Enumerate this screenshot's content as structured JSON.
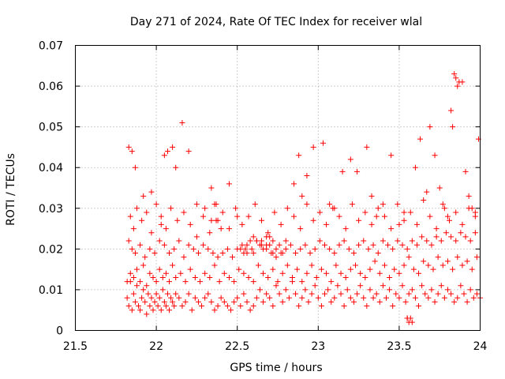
{
  "chart_data": {
    "type": "scatter",
    "title": "Day 271 of 2024, Rate Of TEC Index for receiver wlal",
    "xlabel": "GPS time / hours",
    "ylabel": "ROTI / TECUs",
    "xlim": [
      21.5,
      24
    ],
    "ylim": [
      0,
      0.07
    ],
    "xticks": [
      21.5,
      22,
      22.5,
      23,
      23.5,
      24
    ],
    "xtick_labels": [
      "21.5",
      "22",
      "22.5",
      "23",
      "23.5",
      "24"
    ],
    "yticks": [
      0,
      0.01,
      0.02,
      0.03,
      0.04,
      0.05,
      0.06,
      0.07
    ],
    "ytick_labels": [
      "0",
      "0.01",
      "0.02",
      "0.03",
      "0.04",
      "0.05",
      "0.06",
      "0.07"
    ],
    "grid": true,
    "marker": "plus",
    "color": "#ff0000",
    "series": [
      {
        "name": "ROTI",
        "x": [
          21.82,
          21.83,
          21.84,
          21.85,
          21.86,
          21.87,
          21.88,
          21.89,
          21.9,
          21.91,
          21.92,
          21.93,
          21.94,
          21.95,
          21.96,
          21.97,
          21.98,
          21.99,
          22.0,
          22.01,
          22.02,
          22.03,
          22.04,
          22.05,
          22.06,
          22.07,
          22.08,
          22.09,
          22.1,
          22.11,
          22.12,
          22.14,
          22.16,
          22.18,
          22.2,
          22.22,
          22.24,
          22.26,
          22.28,
          22.3,
          22.32,
          22.34,
          22.36,
          22.38,
          22.4,
          22.42,
          22.44,
          22.46,
          22.48,
          22.5,
          22.52,
          22.54,
          22.56,
          22.58,
          22.6,
          22.62,
          22.64,
          22.66,
          22.68,
          22.7,
          22.72,
          22.74,
          22.76,
          22.78,
          22.8,
          22.82,
          22.84,
          22.86,
          22.88,
          22.9,
          22.92,
          22.94,
          22.96,
          22.98,
          23.0,
          23.02,
          23.04,
          23.06,
          23.08,
          23.1,
          23.12,
          23.14,
          23.16,
          23.18,
          23.2,
          23.22,
          23.24,
          23.26,
          23.28,
          23.3,
          23.32,
          23.34,
          23.36,
          23.38,
          23.4,
          23.42,
          23.44,
          23.46,
          23.48,
          23.5,
          23.52,
          23.54,
          23.56,
          23.58,
          23.6,
          23.62,
          23.64,
          23.66,
          23.68,
          23.7,
          23.72,
          23.74,
          23.76,
          23.78,
          23.8,
          23.82,
          23.84,
          23.86,
          23.88,
          23.9,
          23.92,
          23.94,
          23.96,
          23.98,
          24.0,
          21.82,
          21.84,
          21.86,
          21.88,
          21.9,
          21.92,
          21.94,
          21.96,
          21.98,
          22.0,
          22.02,
          22.04,
          22.06,
          22.08,
          22.1,
          22.12,
          22.15,
          22.18,
          22.21,
          22.24,
          22.27,
          22.3,
          22.33,
          22.36,
          22.39,
          22.42,
          22.45,
          22.48,
          22.51,
          22.54,
          22.57,
          22.6,
          22.63,
          22.66,
          22.69,
          22.72,
          22.75,
          22.78,
          22.81,
          22.84,
          22.87,
          22.9,
          22.93,
          22.96,
          22.99,
          23.02,
          23.05,
          23.08,
          23.11,
          23.14,
          23.17,
          23.2,
          23.23,
          23.26,
          23.29,
          23.32,
          23.35,
          23.38,
          23.41,
          23.44,
          23.47,
          23.5,
          23.53,
          23.56,
          23.59,
          23.62,
          23.65,
          23.68,
          23.71,
          23.74,
          23.77,
          23.8,
          23.83,
          23.86,
          23.89,
          23.92,
          23.95,
          23.98,
          21.83,
          21.85,
          21.87,
          21.9,
          21.93,
          21.96,
          21.99,
          22.02,
          22.05,
          22.08,
          22.11,
          22.14,
          22.17,
          22.2,
          22.23,
          22.26,
          22.29,
          22.32,
          22.35,
          22.38,
          22.41,
          22.44,
          22.47,
          22.5,
          22.53,
          22.56,
          22.59,
          22.62,
          22.65,
          22.68,
          22.71,
          22.74,
          22.77,
          22.8,
          22.83,
          22.86,
          22.89,
          22.92,
          22.95,
          22.98,
          23.01,
          23.04,
          23.07,
          23.1,
          23.13,
          23.16,
          23.19,
          23.22,
          23.25,
          23.28,
          23.31,
          23.34,
          23.37,
          23.4,
          23.43,
          23.46,
          23.49,
          23.52,
          23.55,
          23.58,
          23.61,
          23.64,
          23.67,
          23.7,
          23.73,
          23.76,
          23.79,
          23.82,
          23.85,
          23.88,
          23.91,
          23.94,
          23.97,
          21.83,
          21.85,
          21.87,
          21.92,
          21.97,
          22.03,
          22.05,
          22.07,
          22.1,
          22.12,
          22.16,
          22.2,
          22.25,
          22.3,
          22.34,
          22.37,
          22.45,
          22.5,
          22.55,
          22.6,
          22.65,
          22.68,
          22.7,
          22.72,
          22.8,
          22.85,
          22.88,
          22.9,
          22.93,
          22.97,
          23.03,
          23.07,
          23.1,
          23.15,
          23.2,
          23.24,
          23.3,
          23.33,
          23.36,
          23.4,
          23.45,
          23.5,
          23.53,
          23.55,
          23.6,
          23.63,
          23.67,
          23.69,
          23.72,
          23.75,
          23.78,
          23.8,
          23.82,
          23.83,
          23.84,
          23.85,
          23.86,
          23.87,
          23.89,
          23.91,
          23.93,
          23.95,
          23.97,
          23.99,
          21.84,
          21.86,
          21.88,
          21.91,
          21.94,
          21.97,
          22.0,
          22.03,
          22.06,
          22.09,
          22.13,
          22.17,
          22.21,
          22.25,
          22.29,
          22.33,
          22.37,
          22.41,
          22.45,
          22.49,
          22.53,
          22.57,
          22.61,
          22.65,
          22.69,
          22.73,
          22.77,
          22.81,
          22.85,
          22.89,
          22.93,
          22.97,
          23.01,
          23.05,
          23.09,
          23.13,
          23.17,
          23.21,
          23.25,
          23.29,
          23.33,
          23.37,
          23.41,
          23.45,
          23.49,
          23.53,
          23.57,
          23.61,
          23.65,
          23.69,
          23.73,
          23.77,
          23.81,
          23.85,
          23.89,
          23.93,
          23.97,
          23.55,
          23.56,
          23.57,
          23.58,
          22.34,
          22.36,
          22.38,
          22.4,
          22.52,
          22.54,
          22.56,
          22.58,
          22.6,
          22.62,
          22.64,
          22.66,
          22.68,
          22.7,
          22.72,
          22.74,
          22.76,
          22.78
        ],
        "y": [
          0.008,
          0.006,
          0.012,
          0.005,
          0.009,
          0.007,
          0.011,
          0.006,
          0.005,
          0.008,
          0.01,
          0.007,
          0.004,
          0.009,
          0.006,
          0.008,
          0.005,
          0.007,
          0.009,
          0.006,
          0.008,
          0.005,
          0.01,
          0.007,
          0.006,
          0.009,
          0.005,
          0.008,
          0.007,
          0.006,
          0.009,
          0.008,
          0.006,
          0.007,
          0.009,
          0.005,
          0.008,
          0.007,
          0.006,
          0.008,
          0.009,
          0.007,
          0.005,
          0.006,
          0.008,
          0.007,
          0.006,
          0.005,
          0.007,
          0.008,
          0.006,
          0.009,
          0.007,
          0.005,
          0.006,
          0.008,
          0.01,
          0.007,
          0.009,
          0.008,
          0.006,
          0.011,
          0.009,
          0.007,
          0.01,
          0.008,
          0.012,
          0.009,
          0.006,
          0.008,
          0.01,
          0.007,
          0.009,
          0.011,
          0.008,
          0.006,
          0.009,
          0.01,
          0.007,
          0.008,
          0.011,
          0.009,
          0.006,
          0.01,
          0.008,
          0.007,
          0.009,
          0.011,
          0.008,
          0.006,
          0.01,
          0.008,
          0.009,
          0.007,
          0.011,
          0.008,
          0.01,
          0.006,
          0.009,
          0.008,
          0.011,
          0.007,
          0.009,
          0.01,
          0.008,
          0.006,
          0.011,
          0.009,
          0.008,
          0.01,
          0.007,
          0.009,
          0.011,
          0.008,
          0.01,
          0.009,
          0.007,
          0.008,
          0.011,
          0.009,
          0.007,
          0.01,
          0.008,
          0.009,
          0.008,
          0.012,
          0.014,
          0.013,
          0.015,
          0.012,
          0.016,
          0.011,
          0.014,
          0.013,
          0.012,
          0.015,
          0.013,
          0.014,
          0.012,
          0.016,
          0.013,
          0.014,
          0.012,
          0.015,
          0.013,
          0.012,
          0.014,
          0.013,
          0.016,
          0.012,
          0.014,
          0.013,
          0.012,
          0.015,
          0.014,
          0.013,
          0.012,
          0.016,
          0.014,
          0.013,
          0.015,
          0.012,
          0.014,
          0.016,
          0.013,
          0.015,
          0.012,
          0.014,
          0.016,
          0.013,
          0.015,
          0.014,
          0.012,
          0.016,
          0.014,
          0.013,
          0.015,
          0.016,
          0.014,
          0.013,
          0.015,
          0.017,
          0.014,
          0.016,
          0.013,
          0.015,
          0.014,
          0.016,
          0.018,
          0.015,
          0.014,
          0.017,
          0.016,
          0.015,
          0.018,
          0.016,
          0.017,
          0.015,
          0.018,
          0.016,
          0.017,
          0.015,
          0.018,
          0.022,
          0.02,
          0.019,
          0.021,
          0.018,
          0.02,
          0.019,
          0.022,
          0.021,
          0.019,
          0.02,
          0.022,
          0.018,
          0.021,
          0.02,
          0.019,
          0.021,
          0.02,
          0.019,
          0.018,
          0.019,
          0.02,
          0.018,
          0.02,
          0.021,
          0.019,
          0.02,
          0.022,
          0.021,
          0.02,
          0.019,
          0.018,
          0.019,
          0.02,
          0.021,
          0.019,
          0.02,
          0.021,
          0.019,
          0.02,
          0.022,
          0.021,
          0.02,
          0.019,
          0.021,
          0.022,
          0.02,
          0.019,
          0.021,
          0.022,
          0.02,
          0.021,
          0.019,
          0.022,
          0.021,
          0.02,
          0.022,
          0.021,
          0.02,
          0.022,
          0.021,
          0.023,
          0.022,
          0.021,
          0.023,
          0.022,
          0.024,
          0.023,
          0.022,
          0.024,
          0.023,
          0.022,
          0.024,
          0.045,
          0.044,
          0.04,
          0.033,
          0.034,
          0.026,
          0.043,
          0.044,
          0.045,
          0.04,
          0.051,
          0.044,
          0.023,
          0.03,
          0.027,
          0.031,
          0.036,
          0.028,
          0.02,
          0.019,
          0.022,
          0.023,
          0.021,
          0.019,
          0.022,
          0.036,
          0.043,
          0.033,
          0.038,
          0.045,
          0.046,
          0.031,
          0.03,
          0.039,
          0.042,
          0.039,
          0.045,
          0.033,
          0.028,
          0.031,
          0.043,
          0.026,
          0.029,
          0.003,
          0.04,
          0.047,
          0.034,
          0.05,
          0.043,
          0.035,
          0.03,
          0.028,
          0.054,
          0.05,
          0.063,
          0.062,
          0.06,
          0.061,
          0.061,
          0.039,
          0.033,
          0.03,
          0.029,
          0.047,
          0.028,
          0.025,
          0.03,
          0.027,
          0.029,
          0.024,
          0.031,
          0.028,
          0.025,
          0.03,
          0.027,
          0.029,
          0.026,
          0.031,
          0.028,
          0.024,
          0.027,
          0.029,
          0.025,
          0.03,
          0.026,
          0.028,
          0.031,
          0.027,
          0.024,
          0.029,
          0.026,
          0.03,
          0.028,
          0.025,
          0.031,
          0.027,
          0.029,
          0.026,
          0.03,
          0.028,
          0.025,
          0.031,
          0.027,
          0.029,
          0.026,
          0.03,
          0.028,
          0.025,
          0.031,
          0.027,
          0.029,
          0.026,
          0.032,
          0.028,
          0.025,
          0.031,
          0.027,
          0.029,
          0.026,
          0.03,
          0.028,
          0.003,
          0.002,
          0.003,
          0.002,
          0.035,
          0.031,
          0.027,
          0.025,
          0.02,
          0.019,
          0.021,
          0.022,
          0.023,
          0.022,
          0.021,
          0.02,
          0.021,
          0.023,
          0.022,
          0.02,
          0.021,
          0.019
        ]
      }
    ]
  }
}
